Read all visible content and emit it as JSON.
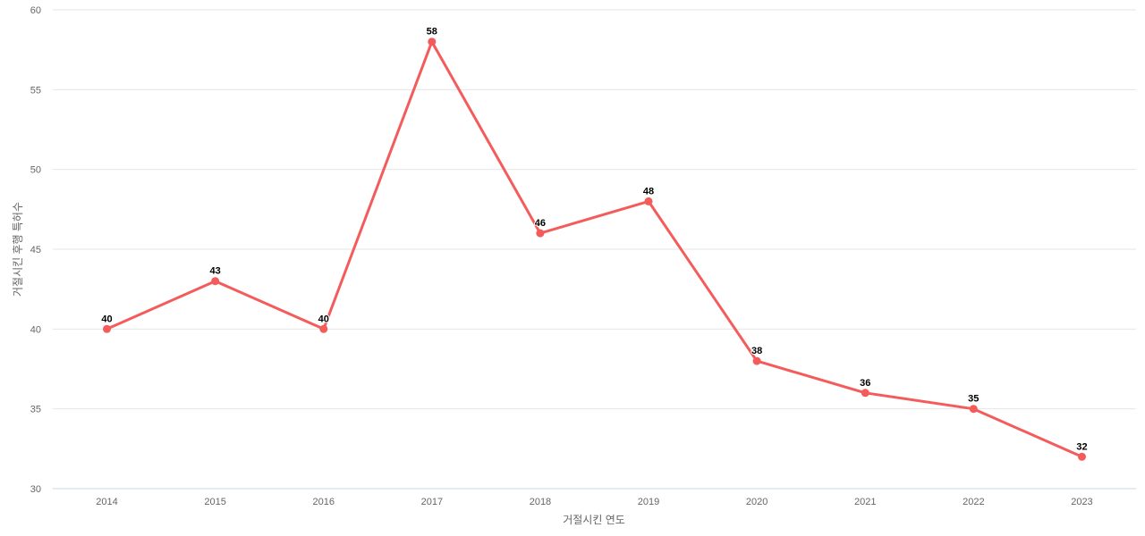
{
  "chart_data": {
    "type": "line",
    "categories": [
      "2014",
      "2015",
      "2016",
      "2017",
      "2018",
      "2019",
      "2020",
      "2021",
      "2022",
      "2023"
    ],
    "values": [
      40,
      43,
      40,
      58,
      46,
      48,
      38,
      36,
      35,
      32
    ],
    "data_labels": [
      "40",
      "43",
      "40",
      "58",
      "46",
      "48",
      "38",
      "36",
      "35",
      "32"
    ],
    "title": "",
    "xlabel": "거절시킨 연도",
    "ylabel": "거절시킨 후행 특허수",
    "ylim": [
      30,
      60
    ],
    "yticks": [
      30,
      35,
      40,
      45,
      50,
      55,
      60
    ],
    "ytick_labels": [
      "30",
      "35",
      "40",
      "45",
      "50",
      "55",
      "60"
    ],
    "grid": "horizontal-only",
    "legend": "none",
    "colors": {
      "series": "#f45b5b",
      "marker": "#f45b5b",
      "gridline": "#e6e6e6",
      "axis_line": "#ccd6eb",
      "tick_label": "#666666",
      "axis_title": "#666666",
      "data_label": "#000000",
      "background": "#ffffff"
    }
  }
}
